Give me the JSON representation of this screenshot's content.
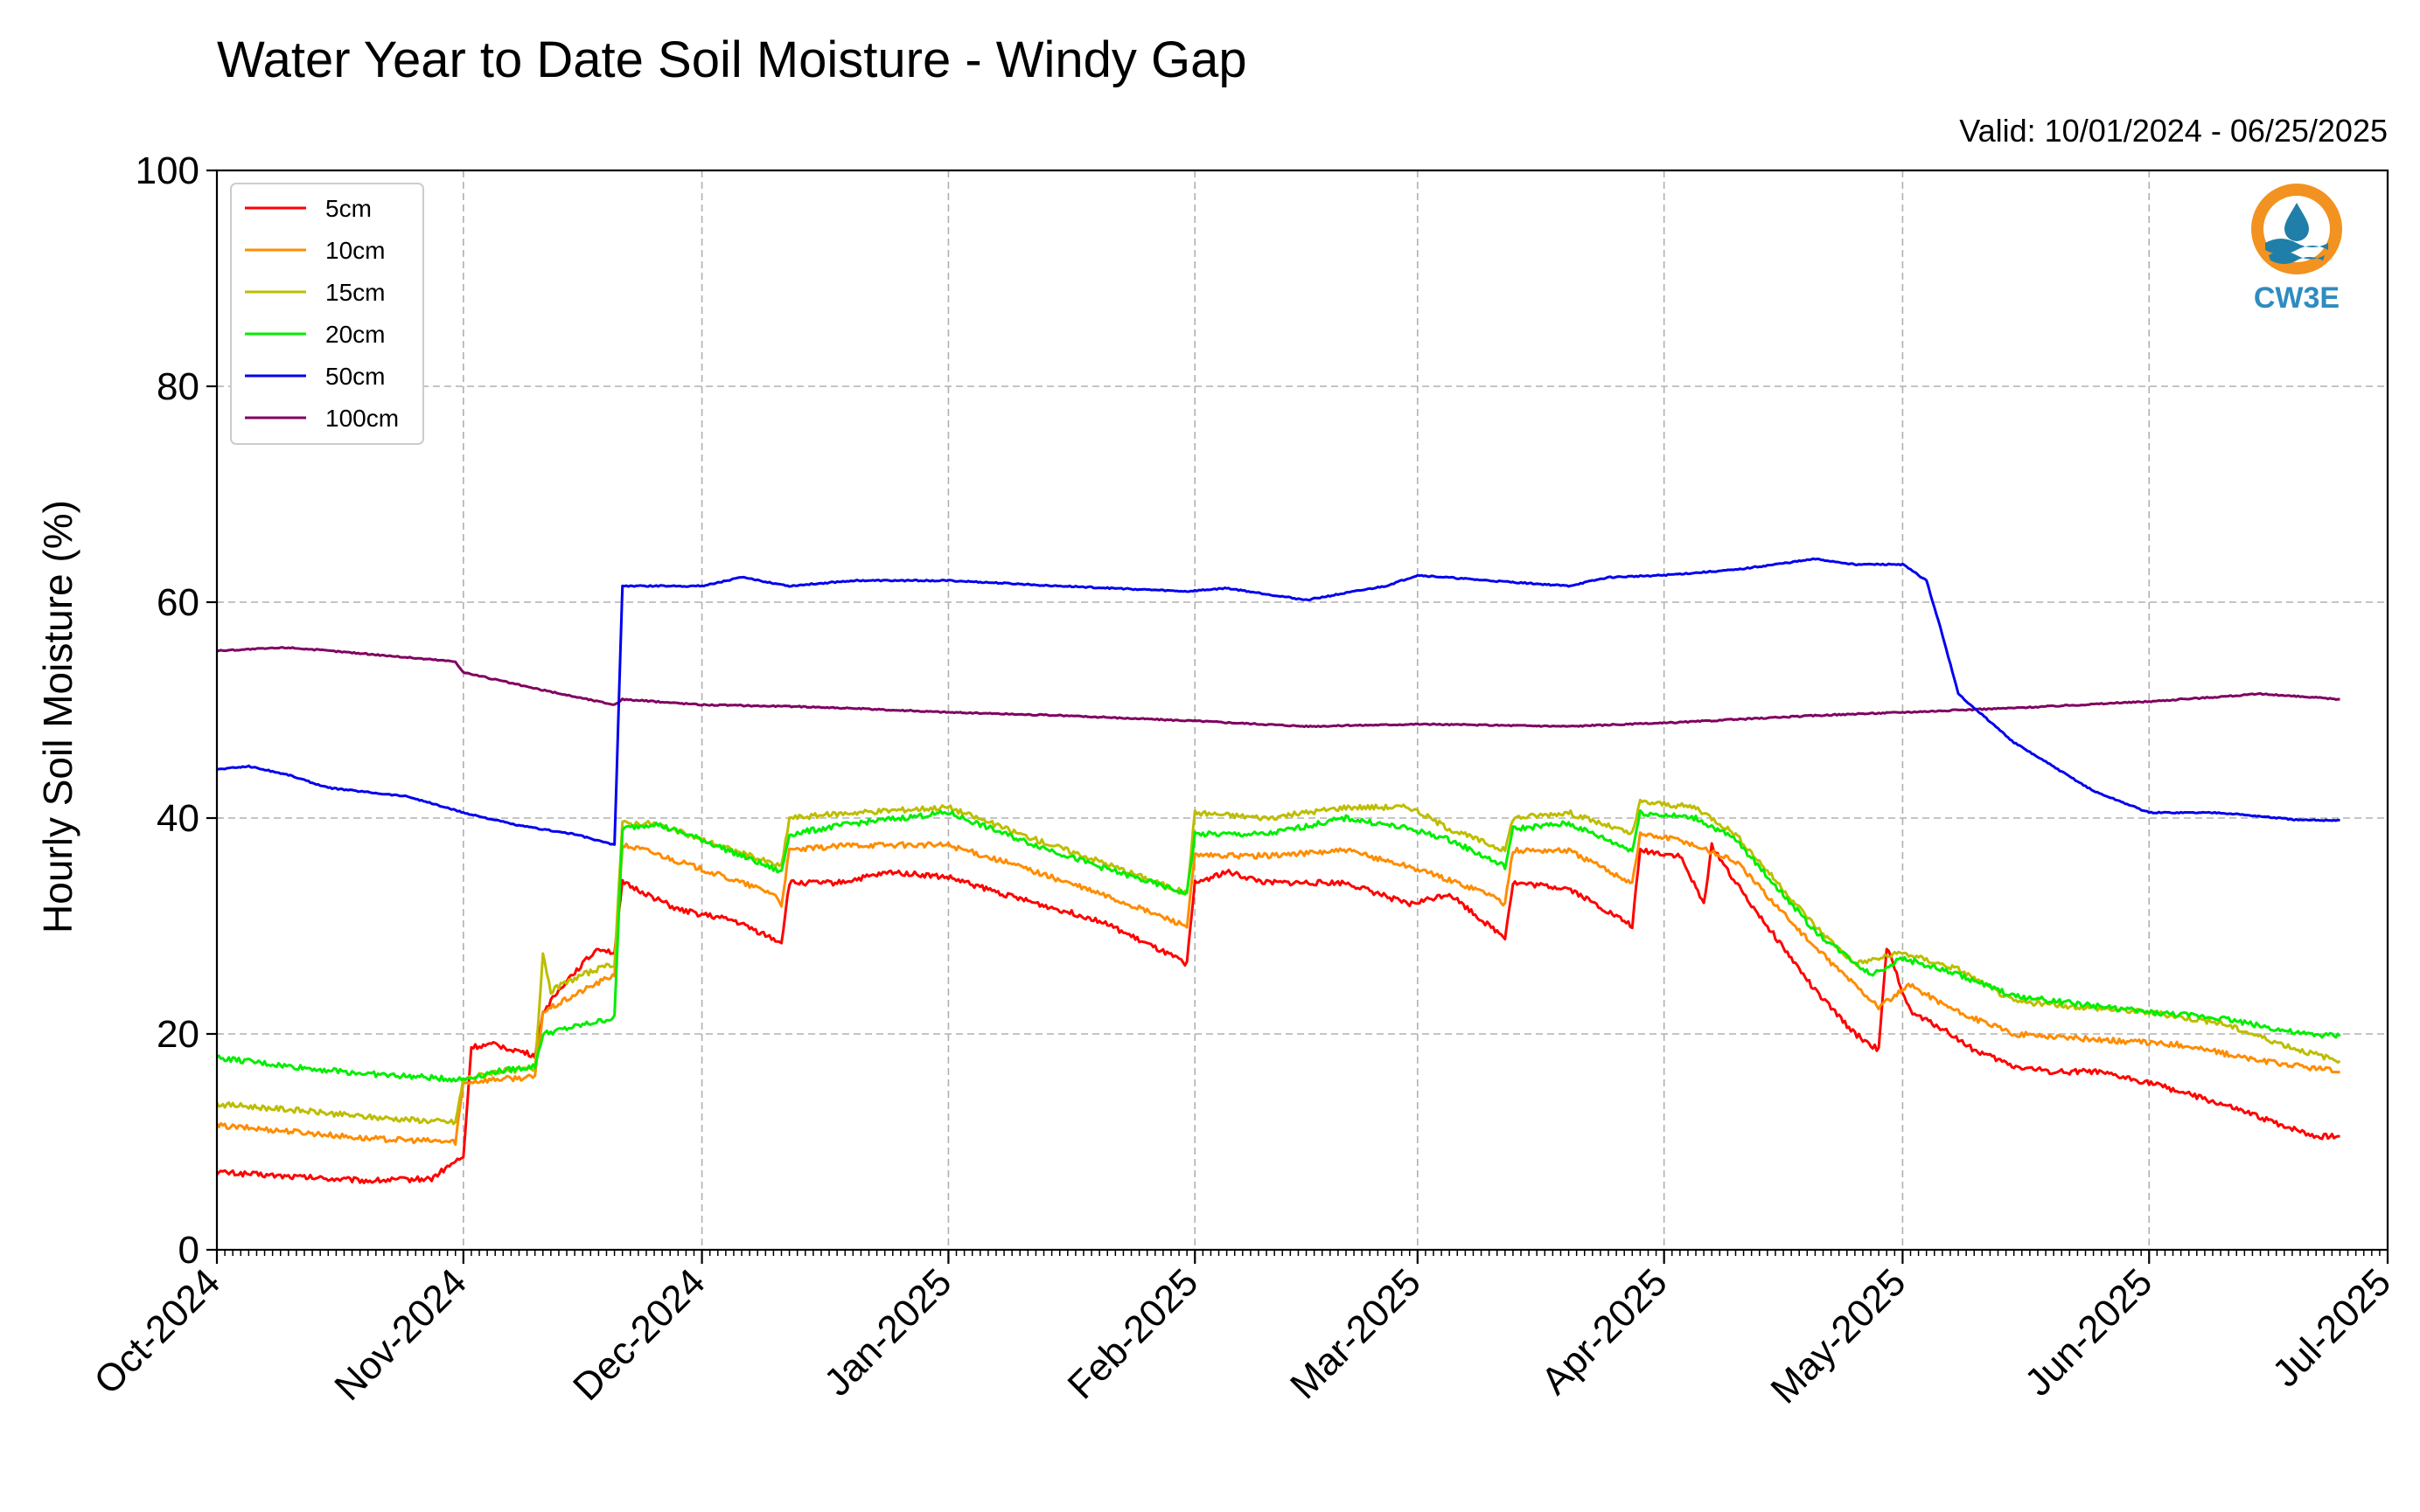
{
  "chart_data": {
    "type": "line",
    "title": "Water Year to Date Soil Moisture - Windy Gap",
    "subtitle": "Valid: 10/01/2024 - 06/25/2025",
    "xlabel": "",
    "ylabel": "Hourly Soil Moisture (%)",
    "ylim": [
      0,
      100
    ],
    "yticks": [
      0,
      20,
      40,
      60,
      80,
      100
    ],
    "xlim": [
      "2024-10-01",
      "2025-07-01"
    ],
    "xtick_dates": [
      "2024-10-01",
      "2024-11-01",
      "2024-12-01",
      "2025-01-01",
      "2025-02-01",
      "2025-03-01",
      "2025-04-01",
      "2025-05-01",
      "2025-06-01",
      "2025-07-01"
    ],
    "xtick_labels": [
      "Oct-2024",
      "Nov-2024",
      "Dec-2024",
      "Jan-2025",
      "Feb-2025",
      "Mar-2025",
      "Apr-2025",
      "May-2025",
      "Jun-2025",
      "Jul-2025"
    ],
    "grid": true,
    "legend_position": "top-left",
    "logo_text": "CW3E",
    "series": [
      {
        "name": "5cm",
        "color": "#ff0000",
        "points": [
          [
            "2024-10-01",
            7.2
          ],
          [
            "2024-10-10",
            6.8
          ],
          [
            "2024-10-20",
            6.4
          ],
          [
            "2024-10-28",
            6.6
          ],
          [
            "2024-10-31",
            8.2
          ],
          [
            "2024-11-01",
            8.5
          ],
          [
            "2024-11-02",
            18.8
          ],
          [
            "2024-11-05",
            19.0
          ],
          [
            "2024-11-10",
            18.0
          ],
          [
            "2024-11-11",
            22.0
          ],
          [
            "2024-11-14",
            25.0
          ],
          [
            "2024-11-16",
            26.5
          ],
          [
            "2024-11-18",
            28.0
          ],
          [
            "2024-11-20",
            27.5
          ],
          [
            "2024-11-21",
            34.0
          ],
          [
            "2024-11-24",
            33.0
          ],
          [
            "2024-11-28",
            31.5
          ],
          [
            "2024-12-05",
            30.5
          ],
          [
            "2024-12-11",
            28.5
          ],
          [
            "2024-12-12",
            34.0
          ],
          [
            "2024-12-18",
            34.0
          ],
          [
            "2024-12-25",
            35.0
          ],
          [
            "2025-01-01",
            34.5
          ],
          [
            "2025-01-10",
            32.5
          ],
          [
            "2025-01-20",
            30.5
          ],
          [
            "2025-01-31",
            26.5
          ],
          [
            "2025-02-01",
            34.0
          ],
          [
            "2025-02-05",
            35.0
          ],
          [
            "2025-02-10",
            34.0
          ],
          [
            "2025-02-20",
            34.0
          ],
          [
            "2025-02-28",
            32.0
          ],
          [
            "2025-03-05",
            33.0
          ],
          [
            "2025-03-10",
            30.0
          ],
          [
            "2025-03-12",
            29.0
          ],
          [
            "2025-03-13",
            34.0
          ],
          [
            "2025-03-20",
            33.5
          ],
          [
            "2025-03-28",
            30.0
          ],
          [
            "2025-03-29",
            37.0
          ],
          [
            "2025-04-03",
            36.5
          ],
          [
            "2025-04-06",
            32.0
          ],
          [
            "2025-04-07",
            37.5
          ],
          [
            "2025-04-10",
            34.0
          ],
          [
            "2025-04-15",
            29.0
          ],
          [
            "2025-04-20",
            24.0
          ],
          [
            "2025-04-25",
            20.0
          ],
          [
            "2025-04-28",
            18.5
          ],
          [
            "2025-04-29",
            28.0
          ],
          [
            "2025-05-02",
            22.0
          ],
          [
            "2025-05-06",
            20.5
          ],
          [
            "2025-05-10",
            18.5
          ],
          [
            "2025-05-15",
            17.0
          ],
          [
            "2025-05-20",
            16.5
          ],
          [
            "2025-05-25",
            16.5
          ],
          [
            "2025-06-01",
            15.5
          ],
          [
            "2025-06-10",
            13.5
          ],
          [
            "2025-06-18",
            11.5
          ],
          [
            "2025-06-22",
            10.5
          ],
          [
            "2025-06-25",
            10.5
          ]
        ]
      },
      {
        "name": "10cm",
        "color": "#ff8c00",
        "points": [
          [
            "2024-10-01",
            11.5
          ],
          [
            "2024-10-10",
            11.0
          ],
          [
            "2024-10-20",
            10.3
          ],
          [
            "2024-10-31",
            10.0
          ],
          [
            "2024-11-01",
            15.5
          ],
          [
            "2024-11-05",
            15.8
          ],
          [
            "2024-11-10",
            16.0
          ],
          [
            "2024-11-11",
            22.0
          ],
          [
            "2024-11-16",
            24.0
          ],
          [
            "2024-11-20",
            25.5
          ],
          [
            "2024-11-21",
            37.5
          ],
          [
            "2024-11-24",
            37.0
          ],
          [
            "2024-11-30",
            35.5
          ],
          [
            "2024-12-10",
            33.0
          ],
          [
            "2024-12-11",
            32.0
          ],
          [
            "2024-12-12",
            37.0
          ],
          [
            "2024-12-20",
            37.5
          ],
          [
            "2025-01-01",
            37.5
          ],
          [
            "2025-01-10",
            35.5
          ],
          [
            "2025-01-20",
            33.0
          ],
          [
            "2025-01-31",
            30.0
          ],
          [
            "2025-02-01",
            36.5
          ],
          [
            "2025-02-10",
            36.5
          ],
          [
            "2025-02-20",
            37.0
          ],
          [
            "2025-02-28",
            35.5
          ],
          [
            "2025-03-10",
            33.0
          ],
          [
            "2025-03-12",
            32.0
          ],
          [
            "2025-03-13",
            37.0
          ],
          [
            "2025-03-20",
            37.0
          ],
          [
            "2025-03-28",
            34.0
          ],
          [
            "2025-03-29",
            38.5
          ],
          [
            "2025-04-03",
            38.0
          ],
          [
            "2025-04-10",
            36.0
          ],
          [
            "2025-04-20",
            28.0
          ],
          [
            "2025-04-28",
            22.5
          ],
          [
            "2025-05-02",
            24.5
          ],
          [
            "2025-05-08",
            22.0
          ],
          [
            "2025-05-15",
            20.0
          ],
          [
            "2025-05-25",
            19.5
          ],
          [
            "2025-06-05",
            19.0
          ],
          [
            "2025-06-15",
            17.5
          ],
          [
            "2025-06-25",
            16.5
          ]
        ]
      },
      {
        "name": "15cm",
        "color": "#bdbd00",
        "points": [
          [
            "2024-10-01",
            13.5
          ],
          [
            "2024-10-10",
            13.0
          ],
          [
            "2024-10-20",
            12.3
          ],
          [
            "2024-10-31",
            11.8
          ],
          [
            "2024-11-01",
            15.8
          ],
          [
            "2024-11-05",
            16.5
          ],
          [
            "2024-11-10",
            16.8
          ],
          [
            "2024-11-11",
            27.5
          ],
          [
            "2024-11-12",
            24.0
          ],
          [
            "2024-11-16",
            25.5
          ],
          [
            "2024-11-20",
            26.5
          ],
          [
            "2024-11-21",
            39.5
          ],
          [
            "2024-11-25",
            39.5
          ],
          [
            "2024-12-01",
            38.0
          ],
          [
            "2024-12-11",
            35.5
          ],
          [
            "2024-12-12",
            40.0
          ],
          [
            "2024-12-20",
            40.5
          ],
          [
            "2025-01-01",
            41.0
          ],
          [
            "2025-01-10",
            38.5
          ],
          [
            "2025-01-20",
            36.0
          ],
          [
            "2025-01-31",
            33.0
          ],
          [
            "2025-02-01",
            40.5
          ],
          [
            "2025-02-10",
            40.0
          ],
          [
            "2025-02-20",
            41.0
          ],
          [
            "2025-02-28",
            41.0
          ],
          [
            "2025-03-05",
            39.0
          ],
          [
            "2025-03-12",
            37.0
          ],
          [
            "2025-03-13",
            40.0
          ],
          [
            "2025-03-20",
            40.5
          ],
          [
            "2025-03-28",
            38.5
          ],
          [
            "2025-03-29",
            41.5
          ],
          [
            "2025-04-05",
            41.0
          ],
          [
            "2025-04-10",
            38.5
          ],
          [
            "2025-04-20",
            30.0
          ],
          [
            "2025-04-25",
            26.5
          ],
          [
            "2025-05-01",
            27.5
          ],
          [
            "2025-05-08",
            26.0
          ],
          [
            "2025-05-15",
            23.0
          ],
          [
            "2025-06-01",
            22.0
          ],
          [
            "2025-06-10",
            21.0
          ],
          [
            "2025-06-20",
            18.5
          ],
          [
            "2025-06-25",
            17.5
          ]
        ]
      },
      {
        "name": "20cm",
        "color": "#00ee00",
        "points": [
          [
            "2024-10-01",
            17.8
          ],
          [
            "2024-10-10",
            17.0
          ],
          [
            "2024-10-20",
            16.3
          ],
          [
            "2024-10-31",
            15.8
          ],
          [
            "2024-11-01",
            15.8
          ],
          [
            "2024-11-05",
            16.5
          ],
          [
            "2024-11-10",
            17.0
          ],
          [
            "2024-11-11",
            20.0
          ],
          [
            "2024-11-20",
            21.5
          ],
          [
            "2024-11-21",
            39.0
          ],
          [
            "2024-11-25",
            39.5
          ],
          [
            "2024-12-01",
            38.0
          ],
          [
            "2024-12-11",
            35.0
          ],
          [
            "2024-12-12",
            38.5
          ],
          [
            "2024-12-20",
            39.5
          ],
          [
            "2025-01-01",
            40.5
          ],
          [
            "2025-01-10",
            38.0
          ],
          [
            "2025-01-20",
            35.5
          ],
          [
            "2025-01-31",
            33.0
          ],
          [
            "2025-02-01",
            38.5
          ],
          [
            "2025-02-10",
            38.5
          ],
          [
            "2025-02-20",
            40.0
          ],
          [
            "2025-02-28",
            39.0
          ],
          [
            "2025-03-05",
            38.0
          ],
          [
            "2025-03-12",
            35.5
          ],
          [
            "2025-03-13",
            39.0
          ],
          [
            "2025-03-20",
            39.5
          ],
          [
            "2025-03-28",
            37.0
          ],
          [
            "2025-03-29",
            40.5
          ],
          [
            "2025-04-05",
            40.0
          ],
          [
            "2025-04-10",
            38.0
          ],
          [
            "2025-04-20",
            29.5
          ],
          [
            "2025-04-27",
            25.5
          ],
          [
            "2025-05-01",
            27.0
          ],
          [
            "2025-05-08",
            25.5
          ],
          [
            "2025-05-15",
            23.5
          ],
          [
            "2025-06-01",
            22.0
          ],
          [
            "2025-06-10",
            21.5
          ],
          [
            "2025-06-20",
            20.0
          ],
          [
            "2025-06-25",
            19.8
          ]
        ]
      },
      {
        "name": "50cm",
        "color": "#0000ee",
        "points": [
          [
            "2024-10-01",
            44.5
          ],
          [
            "2024-10-05",
            44.8
          ],
          [
            "2024-10-10",
            44.0
          ],
          [
            "2024-10-15",
            42.8
          ],
          [
            "2024-10-25",
            42.0
          ],
          [
            "2024-11-01",
            40.5
          ],
          [
            "2024-11-08",
            39.3
          ],
          [
            "2024-11-15",
            38.5
          ],
          [
            "2024-11-20",
            37.5
          ],
          [
            "2024-11-21",
            61.5
          ],
          [
            "2024-11-25",
            61.5
          ],
          [
            "2024-12-01",
            61.5
          ],
          [
            "2024-12-06",
            62.3
          ],
          [
            "2024-12-12",
            61.5
          ],
          [
            "2024-12-20",
            62.0
          ],
          [
            "2025-01-01",
            62.0
          ],
          [
            "2025-01-15",
            61.5
          ],
          [
            "2025-01-31",
            61.0
          ],
          [
            "2025-02-05",
            61.3
          ],
          [
            "2025-02-15",
            60.2
          ],
          [
            "2025-02-25",
            61.5
          ],
          [
            "2025-03-01",
            62.5
          ],
          [
            "2025-03-10",
            62.0
          ],
          [
            "2025-03-20",
            61.5
          ],
          [
            "2025-03-25",
            62.3
          ],
          [
            "2025-04-01",
            62.5
          ],
          [
            "2025-04-10",
            63.0
          ],
          [
            "2025-04-20",
            64.0
          ],
          [
            "2025-04-25",
            63.5
          ],
          [
            "2025-05-01",
            63.5
          ],
          [
            "2025-05-04",
            62.0
          ],
          [
            "2025-05-06",
            57.0
          ],
          [
            "2025-05-08",
            51.5
          ],
          [
            "2025-05-15",
            47.0
          ],
          [
            "2025-05-25",
            42.5
          ],
          [
            "2025-06-01",
            40.5
          ],
          [
            "2025-06-10",
            40.5
          ],
          [
            "2025-06-20",
            39.8
          ],
          [
            "2025-06-25",
            39.8
          ]
        ]
      },
      {
        "name": "100cm",
        "color": "#800060",
        "points": [
          [
            "2024-10-01",
            55.5
          ],
          [
            "2024-10-10",
            55.8
          ],
          [
            "2024-10-20",
            55.2
          ],
          [
            "2024-10-31",
            54.5
          ],
          [
            "2024-11-01",
            53.5
          ],
          [
            "2024-11-10",
            52.0
          ],
          [
            "2024-11-20",
            50.5
          ],
          [
            "2024-11-21",
            51.0
          ],
          [
            "2024-12-01",
            50.5
          ],
          [
            "2024-12-15",
            50.3
          ],
          [
            "2025-01-01",
            49.8
          ],
          [
            "2025-01-15",
            49.5
          ],
          [
            "2025-02-01",
            49.0
          ],
          [
            "2025-02-15",
            48.5
          ],
          [
            "2025-03-01",
            48.7
          ],
          [
            "2025-03-20",
            48.5
          ],
          [
            "2025-04-01",
            48.8
          ],
          [
            "2025-04-20",
            49.5
          ],
          [
            "2025-05-01",
            49.8
          ],
          [
            "2025-05-15",
            50.2
          ],
          [
            "2025-06-01",
            50.8
          ],
          [
            "2025-06-15",
            51.5
          ],
          [
            "2025-06-25",
            51.0
          ]
        ]
      }
    ]
  }
}
